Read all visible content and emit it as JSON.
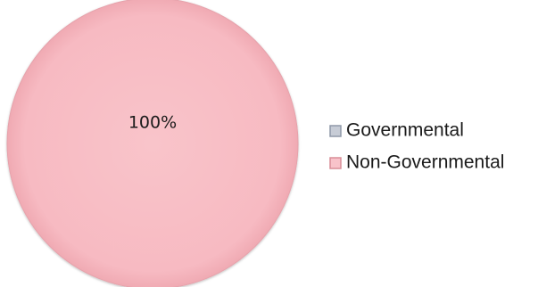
{
  "chart_data": {
    "type": "pie",
    "title": "",
    "categories": [
      "Governmental",
      "Non-Governmental"
    ],
    "values": [
      0,
      100
    ],
    "data_labels": [
      "",
      "100%"
    ],
    "colors": [
      "#b8bfcc",
      "#f7b8c0"
    ],
    "legend_placement": "right"
  }
}
